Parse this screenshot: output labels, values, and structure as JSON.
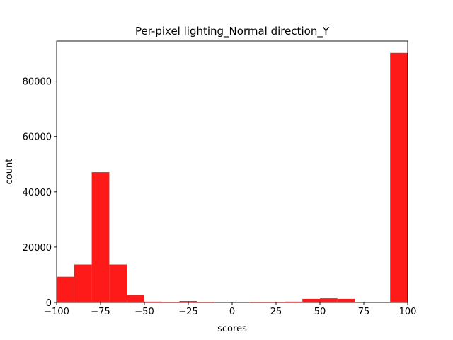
{
  "chart_data": {
    "type": "bar",
    "title": "Per-pixel lighting_Normal direction_Y",
    "xlabel": "scores",
    "ylabel": "count",
    "xlim": [
      -100,
      100
    ],
    "ylim": [
      0,
      94500
    ],
    "xticks": [
      -100,
      -75,
      -50,
      -25,
      0,
      25,
      50,
      75,
      100
    ],
    "xtick_labels": [
      "−100",
      "−75",
      "−50",
      "−25",
      "0",
      "25",
      "50",
      "75",
      "100"
    ],
    "yticks": [
      0,
      20000,
      40000,
      60000,
      80000
    ],
    "ytick_labels": [
      "0",
      "20000",
      "40000",
      "60000",
      "80000"
    ],
    "bin_edges": [
      -100,
      -90,
      -80,
      -70,
      -60,
      -50,
      -40,
      -30,
      -20,
      -10,
      0,
      10,
      20,
      30,
      40,
      50,
      60,
      70,
      80,
      90,
      100
    ],
    "values": [
      9300,
      13700,
      47100,
      13700,
      2700,
      300,
      200,
      500,
      200,
      0,
      0,
      200,
      200,
      300,
      1300,
      1500,
      1300,
      0,
      0,
      90200
    ],
    "bar_color": "#ff1a1a",
    "grid": false,
    "legend": "none"
  }
}
